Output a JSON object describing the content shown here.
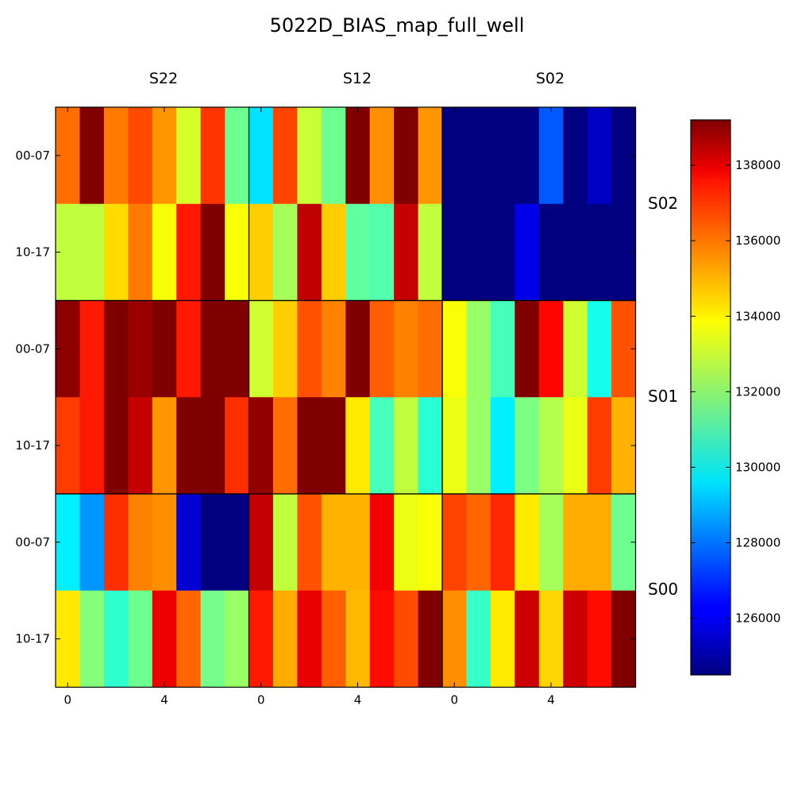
{
  "chart_data": {
    "type": "heatmap",
    "title": "5022D_BIAS_map_full_well",
    "column_labels": [
      "S22",
      "S12",
      "S02"
    ],
    "row_labels": [
      "S02",
      "S01",
      "S00"
    ],
    "y_tick_labels": [
      "00-07",
      "10-17"
    ],
    "x_tick_labels": [
      "0",
      "4"
    ],
    "colormap": "jet",
    "colorbar": {
      "vmin": 124500,
      "vmax": 139200,
      "ticks": [
        126000,
        128000,
        130000,
        132000,
        134000,
        136000,
        138000
      ]
    },
    "panels": [
      {
        "column": "S22",
        "row": "S02",
        "values": [
          [
            135800,
            139200,
            135600,
            136300,
            135200,
            133100,
            136600,
            131600
          ],
          [
            132800,
            132800,
            134200,
            135600,
            133600,
            137000,
            139200,
            133600
          ]
        ]
      },
      {
        "column": "S12",
        "row": "S02",
        "values": [
          [
            129600,
            136400,
            132900,
            131600,
            139200,
            135300,
            139200,
            135200
          ],
          [
            134400,
            132400,
            138300,
            134400,
            131400,
            131200,
            138200,
            132800
          ]
        ]
      },
      {
        "column": "S02",
        "row": "S02",
        "values": [
          [
            124500,
            124500,
            124500,
            124500,
            127600,
            124500,
            125500,
            124500
          ],
          [
            124500,
            124500,
            124500,
            126000,
            124500,
            124500,
            124500,
            124500
          ]
        ]
      },
      {
        "column": "S22",
        "row": "S01",
        "values": [
          [
            139000,
            137000,
            139200,
            138800,
            139200,
            137000,
            139200,
            139200
          ],
          [
            136500,
            137000,
            139200,
            138200,
            135200,
            139200,
            139200,
            136700
          ]
        ]
      },
      {
        "column": "S12",
        "row": "S01",
        "values": [
          [
            133000,
            134400,
            136200,
            135500,
            139200,
            136000,
            135500,
            135800
          ],
          [
            138900,
            135800,
            139200,
            139200,
            134000,
            131000,
            132800,
            130600
          ]
        ]
      },
      {
        "column": "S02",
        "row": "S01",
        "values": [
          [
            133600,
            132200,
            131000,
            139200,
            137300,
            133000,
            130300,
            136200
          ],
          [
            133400,
            132200,
            129800,
            131800,
            132600,
            133400,
            136500,
            134800
          ]
        ]
      },
      {
        "column": "S22",
        "row": "S00",
        "values": [
          [
            129800,
            128500,
            136700,
            135500,
            135300,
            125700,
            124500,
            124500
          ],
          [
            134000,
            131900,
            130700,
            131600,
            137600,
            135900,
            131700,
            132200
          ]
        ]
      },
      {
        "column": "S12",
        "row": "S00",
        "values": [
          [
            138200,
            132800,
            136200,
            134800,
            134800,
            137500,
            133400,
            133600
          ],
          [
            137000,
            134900,
            137700,
            136000,
            134700,
            137200,
            136300,
            139200
          ]
        ]
      },
      {
        "column": "S02",
        "row": "S00",
        "values": [
          [
            136400,
            135900,
            136800,
            134000,
            132400,
            134900,
            134900,
            131600
          ],
          [
            135300,
            130800,
            134000,
            138100,
            134300,
            138100,
            137200,
            139200
          ]
        ]
      }
    ]
  }
}
